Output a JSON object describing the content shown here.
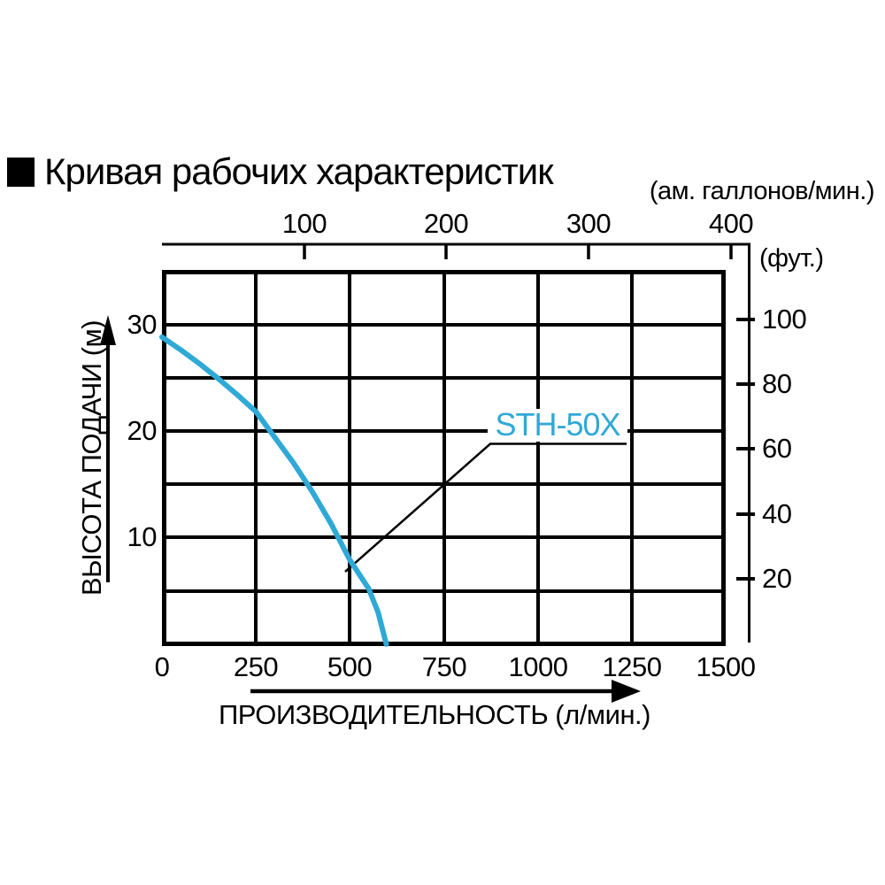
{
  "title": "Кривая рабочих характеристик",
  "colors": {
    "curve": "#2fa9d6",
    "axis": "#000000",
    "background": "#ffffff"
  },
  "chart_data": {
    "type": "line",
    "title": "Кривая рабочих характеристик",
    "grid": true,
    "series": [
      {
        "name": "STH-50X",
        "color": "#2fa9d6",
        "points_flow_lpm_head_m": [
          [
            0,
            28.8
          ],
          [
            50,
            27.6
          ],
          [
            100,
            26.3
          ],
          [
            150,
            24.9
          ],
          [
            200,
            23.4
          ],
          [
            250,
            21.8
          ],
          [
            300,
            19.4
          ],
          [
            350,
            17.0
          ],
          [
            400,
            14.3
          ],
          [
            450,
            11.3
          ],
          [
            500,
            7.9
          ],
          [
            550,
            5.2
          ],
          [
            575,
            3.0
          ],
          [
            597,
            0
          ]
        ]
      }
    ],
    "x_axis_bottom": {
      "label": "ПРОИЗВОДИТЕЛЬНОСТЬ (л/мин.)",
      "unit": "л/мин.",
      "range": [
        0,
        1500
      ],
      "ticks": [
        "0",
        "250",
        "500",
        "750",
        "1000",
        "1250",
        "1500"
      ]
    },
    "x_axis_top": {
      "label": "(ам. галлонов/мин.)",
      "unit": "ам. галлонов/мин.",
      "range": [
        0,
        400
      ],
      "ticks": [
        "100",
        "200",
        "300",
        "400"
      ]
    },
    "y_axis_left": {
      "label": "ВЫСОТА ПОДАЧИ (м)",
      "unit": "м",
      "range": [
        0,
        35
      ],
      "ticks": [
        "30",
        "20",
        "10"
      ]
    },
    "y_axis_right": {
      "label": "(фут.)",
      "unit": "фут.",
      "ticks": [
        "100",
        "80",
        "60",
        "40",
        "20"
      ]
    },
    "annotation": {
      "label": "STH-50X"
    }
  }
}
